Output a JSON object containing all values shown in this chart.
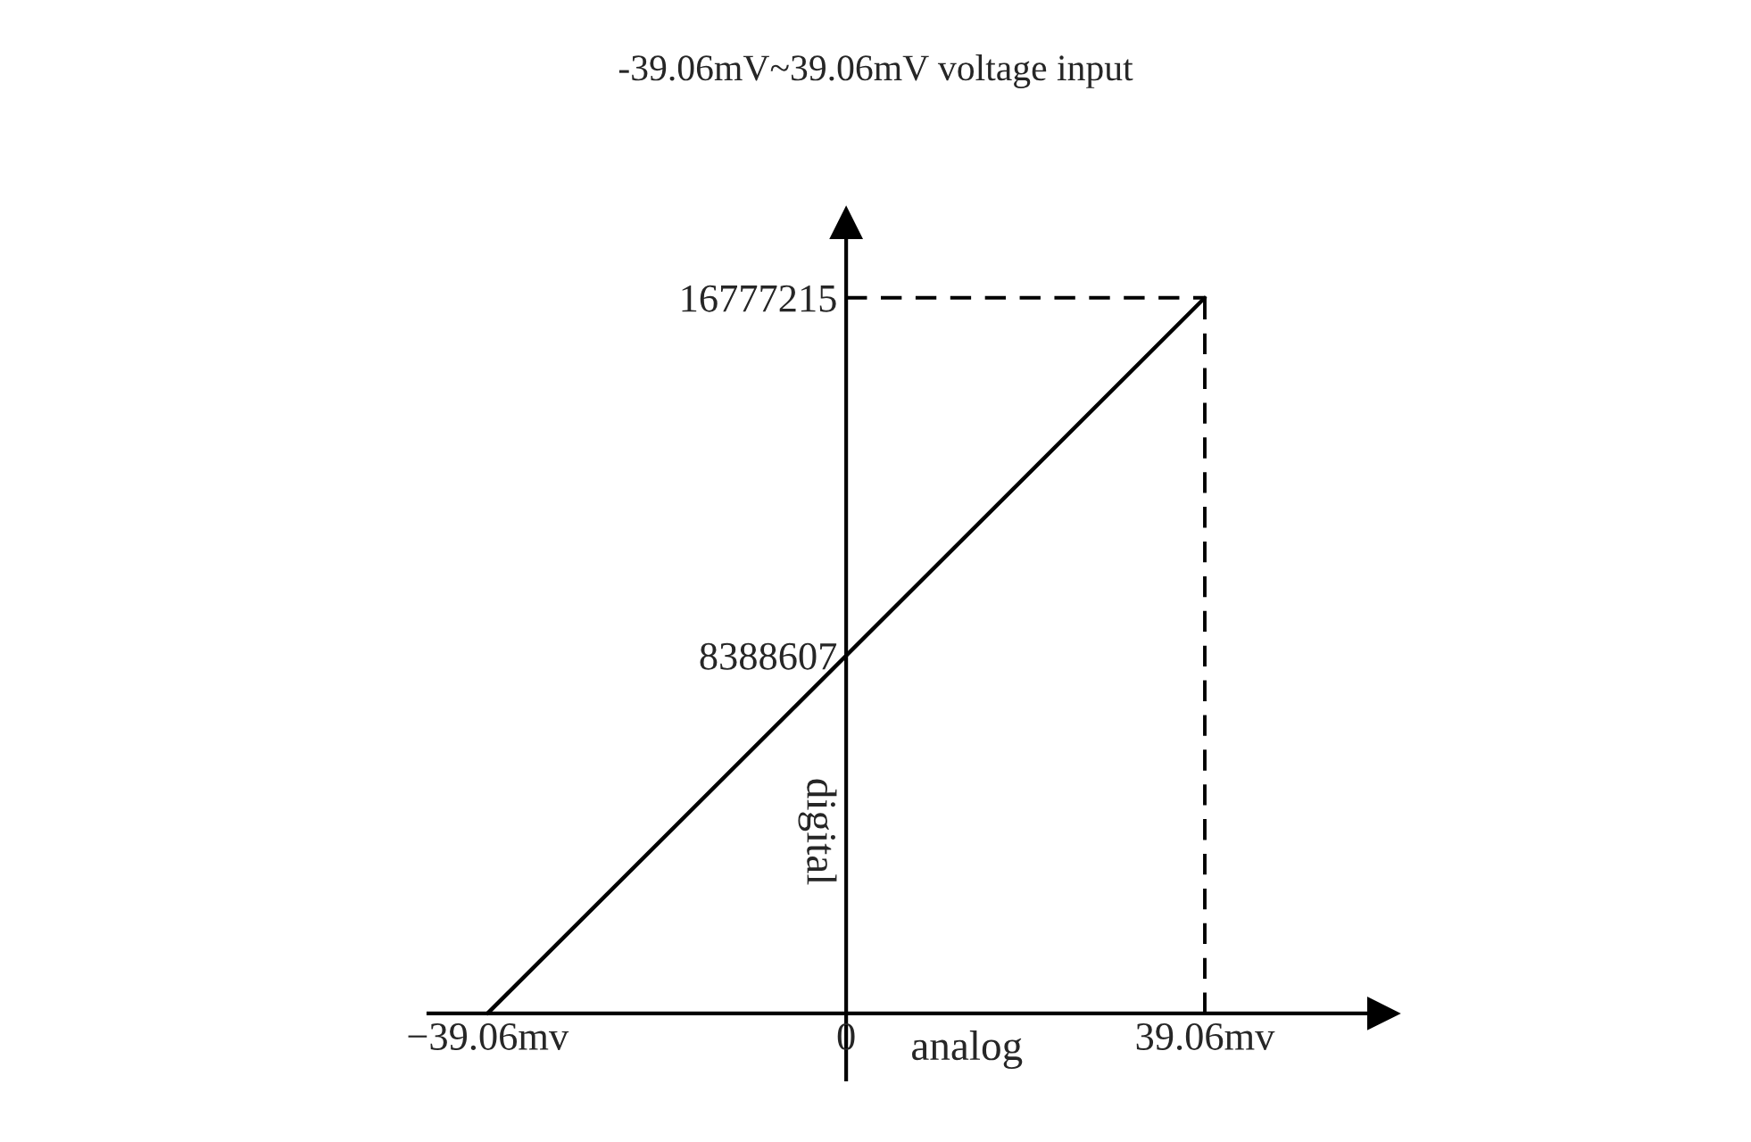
{
  "chart_data": {
    "type": "line",
    "title": "-39.06mV~39.06mV voltage input",
    "xlabel": "analog",
    "ylabel": "digital",
    "x": [
      -39.06,
      39.06
    ],
    "series": [
      {
        "color": "#000000",
        "values": [
          0,
          16777215
        ]
      }
    ],
    "xlim": [
      -45.5,
      58.5
    ],
    "ylim": [
      -1550000,
      18530000
    ],
    "xticks": [
      {
        "value": -39.06,
        "label": "−39.06mv"
      },
      0,
      {
        "value": 39.06,
        "label": "39.06mv"
      }
    ],
    "yticks": [
      8388607,
      16777215
    ],
    "ref_lines": [
      {
        "axis": "y",
        "value": 16777215,
        "color": "#000000",
        "line_style": "dashed"
      },
      {
        "axis": "x",
        "value": 39.06,
        "color": "#000000",
        "line_style": "dashed"
      }
    ],
    "grid": false,
    "marker": "none",
    "line_style": "solid"
  }
}
